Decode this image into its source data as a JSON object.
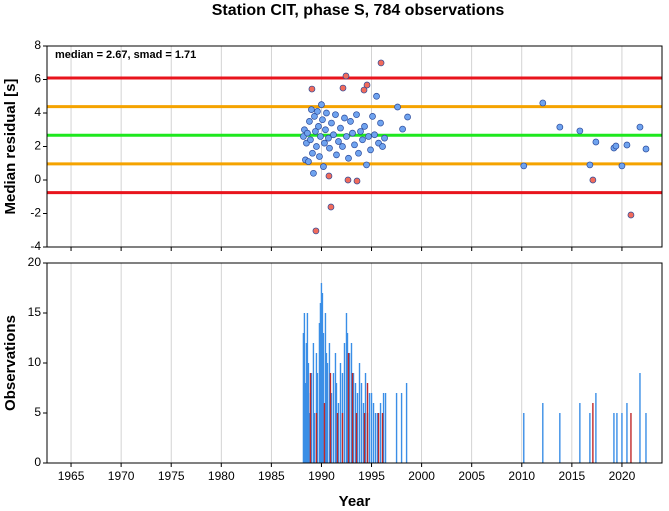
{
  "chart_data": [
    {
      "type": "scatter",
      "title": "Station CIT, phase S, 784 observations",
      "annotation": "median = 2.67, smad = 1.71",
      "y_label": "Median residual [s]",
      "xlim": [
        1962.6,
        2024.0
      ],
      "xticks": [
        1965,
        1970,
        1975,
        1980,
        1985,
        1990,
        1995,
        2000,
        2005,
        2010,
        2015,
        2020
      ],
      "ylim": [
        -4,
        8
      ],
      "yticks": [
        -4,
        -2,
        0,
        2,
        4,
        6,
        8
      ],
      "reference_lines": [
        {
          "value": 6.09,
          "color": "#e8141c"
        },
        {
          "value": 4.38,
          "color": "#f5a300"
        },
        {
          "value": 2.67,
          "color": "#1ee81e"
        },
        {
          "value": 0.96,
          "color": "#f5a300"
        },
        {
          "value": -0.75,
          "color": "#e8141c"
        }
      ],
      "series": [
        {
          "color": "#6fa3ef",
          "x": [
            1988.2,
            1988.3,
            1988.4,
            1988.5,
            1988.6,
            1988.7,
            1988.8,
            1988.9,
            1989.0,
            1989.1,
            1989.2,
            1989.3,
            1989.4,
            1989.5,
            1989.6,
            1989.7,
            1989.8,
            1989.9,
            1990.0,
            1990.1,
            1990.2,
            1990.3,
            1990.4,
            1990.5,
            1990.7,
            1990.8,
            1991.0,
            1991.2,
            1991.4,
            1991.5,
            1991.7,
            1991.9,
            1992.1,
            1992.3,
            1992.5,
            1992.7,
            1992.9,
            1993.1,
            1993.3,
            1993.5,
            1993.7,
            1993.9,
            1994.1,
            1994.3,
            1994.5,
            1994.7,
            1994.9,
            1995.1,
            1995.3,
            1995.5,
            1995.7,
            1995.9,
            1996.1,
            1996.3,
            1997.6,
            1998.1,
            1998.6,
            2010.2,
            2012.1,
            2013.8,
            2015.8,
            2016.8,
            2017.4,
            2019.2,
            2019.4,
            2020.0,
            2020.5,
            2021.8,
            2022.4
          ],
          "values": [
            2.6,
            3.0,
            1.2,
            2.2,
            2.8,
            1.1,
            3.5,
            2.4,
            4.2,
            1.6,
            0.4,
            3.8,
            2.9,
            2.0,
            4.1,
            3.2,
            1.4,
            2.6,
            4.5,
            3.6,
            0.8,
            2.2,
            3.0,
            4.0,
            2.5,
            1.9,
            3.4,
            2.7,
            3.9,
            1.5,
            2.3,
            3.1,
            2.0,
            3.7,
            2.6,
            1.3,
            3.5,
            2.8,
            2.1,
            3.9,
            1.6,
            2.9,
            2.4,
            3.2,
            0.9,
            2.6,
            1.8,
            3.8,
            2.7,
            5.0,
            2.2,
            3.4,
            2.0,
            2.5,
            4.36,
            3.04,
            3.76,
            0.84,
            4.6,
            3.16,
            2.93,
            0.9,
            2.27,
            1.91,
            2.03,
            0.84,
            2.09,
            3.16,
            1.85
          ]
        },
        {
          "color": "#f26b5b",
          "x": [
            1989.05,
            1989.45,
            1990.75,
            1990.95,
            1992.15,
            1992.45,
            1992.65,
            1993.55,
            1994.25,
            1994.55,
            1995.95,
            2017.1,
            2020.9
          ],
          "values": [
            5.43,
            -3.04,
            0.24,
            -1.61,
            5.49,
            6.21,
            0.0,
            -0.06,
            5.37,
            5.67,
            6.99,
            0.0,
            -2.09
          ]
        }
      ]
    },
    {
      "type": "bar",
      "x_label": "Year",
      "y_label": "Observations",
      "xlim": [
        1962.6,
        2024.0
      ],
      "xticks": [
        1965,
        1970,
        1975,
        1980,
        1985,
        1990,
        1995,
        2000,
        2005,
        2010,
        2015,
        2020
      ],
      "ylim": [
        0,
        20
      ],
      "yticks": [
        0,
        5,
        10,
        15,
        20
      ],
      "series": [
        {
          "color": "#3a8ee6",
          "x": [
            1988.2,
            1988.3,
            1988.4,
            1988.5,
            1988.6,
            1988.7,
            1988.8,
            1988.9,
            1989.0,
            1989.2,
            1989.3,
            1989.5,
            1989.6,
            1989.8,
            1989.9,
            1990.0,
            1990.1,
            1990.2,
            1990.4,
            1990.5,
            1990.6,
            1990.8,
            1991.0,
            1991.2,
            1991.4,
            1991.5,
            1991.7,
            1991.9,
            1992.1,
            1992.3,
            1992.5,
            1992.6,
            1992.8,
            1993.0,
            1993.2,
            1993.4,
            1993.6,
            1993.8,
            1994.0,
            1994.2,
            1994.4,
            1994.6,
            1994.8,
            1995.0,
            1995.2,
            1995.4,
            1995.6,
            1995.9,
            1996.2,
            1996.4,
            1997.5,
            1998.0,
            1998.5,
            2010.2,
            2012.1,
            2013.8,
            2015.8,
            2016.8,
            2017.4,
            2019.2,
            2019.5,
            2020.0,
            2020.5,
            2021.8,
            2022.4
          ],
          "values": [
            13,
            15,
            8,
            12,
            15,
            10,
            5,
            7,
            9,
            12,
            5,
            11,
            9,
            14,
            16,
            18,
            17,
            13,
            15,
            11,
            10,
            12,
            7,
            9,
            11,
            8,
            6,
            10,
            9,
            12,
            15,
            13,
            11,
            12,
            9,
            8,
            7,
            10,
            8,
            6,
            9,
            5,
            7,
            7,
            6,
            5,
            5,
            6,
            7,
            7,
            7,
            7,
            8,
            5,
            6,
            5,
            6,
            5,
            7,
            5,
            5,
            5,
            6,
            9,
            5
          ]
        },
        {
          "color": "#c0282a",
          "x": [
            1988.9,
            1989.5,
            1990.3,
            1990.9,
            1991.6,
            1992.1,
            1992.7,
            1993.1,
            1993.5,
            1994.3,
            1994.6,
            1995.7,
            1996.1,
            2017.1,
            2020.9
          ],
          "values": [
            9,
            5,
            6,
            9,
            5,
            5,
            11,
            9,
            5,
            5,
            8,
            5,
            5,
            6,
            5
          ]
        }
      ]
    }
  ]
}
